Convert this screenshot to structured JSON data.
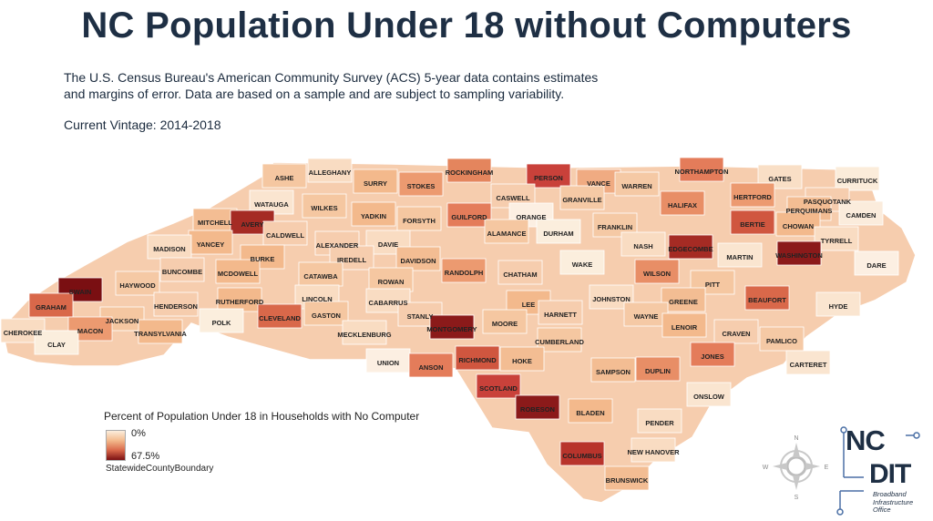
{
  "title": "NC Population Under 18 without Computers",
  "description": {
    "line1": "The U.S. Census Bureau's American Community Survey (ACS) 5-year data contains estimates",
    "line2": "and margins of error.  Data are based on a sample and are subject to sampling variability."
  },
  "vintage": "Current Vintage: 2014-2018",
  "legend": {
    "title": "Percent of Population Under 18 in Households with No Computer",
    "min_label": "0%",
    "max_label": "67.5%",
    "boundary_label": "StatewideCountyBoundary",
    "colors": [
      "#fbeedd",
      "#f3b98c",
      "#d9684a",
      "#7a0f12"
    ]
  },
  "compass": {
    "n": "N",
    "e": "E",
    "s": "S",
    "w": "W"
  },
  "logo": {
    "nc": "NC",
    "dit": "DIT",
    "line1": "Broadband",
    "line2": "Infrastructure",
    "line3": "Office",
    "color": "#1e2f44"
  },
  "map": {
    "counties": [
      {
        "name": "ASHE",
        "color": "#f5c7a1"
      },
      {
        "name": "ALLEGHANY",
        "color": "#f9dcc2"
      },
      {
        "name": "SURRY",
        "color": "#f3b98c"
      },
      {
        "name": "STOKES",
        "color": "#ec9a70"
      },
      {
        "name": "ROCKINGHAM",
        "color": "#e4855d"
      },
      {
        "name": "PERSON",
        "color": "#c9413a"
      },
      {
        "name": "VANCE",
        "color": "#f0ab82"
      },
      {
        "name": "WARREN",
        "color": "#f5c9a5"
      },
      {
        "name": "NORTHAMPTON",
        "color": "#e47c5a"
      },
      {
        "name": "GATES",
        "color": "#f9dfc6"
      },
      {
        "name": "CURRITUCK",
        "color": "#fbecda"
      },
      {
        "name": "HERTFORD",
        "color": "#ec9a70"
      },
      {
        "name": "PASQUOTANK",
        "color": "#f6cdae"
      },
      {
        "name": "PERQUIMANS",
        "color": "#f3bd93"
      },
      {
        "name": "CAMDEN",
        "color": "#fbecdc"
      },
      {
        "name": "CHOWAN",
        "color": "#f3b98c"
      },
      {
        "name": "WATAUGA",
        "color": "#fae5d0"
      },
      {
        "name": "WILKES",
        "color": "#f5c7a1"
      },
      {
        "name": "YADKIN",
        "color": "#f3b98c"
      },
      {
        "name": "FORSYTH",
        "color": "#f5c7a1"
      },
      {
        "name": "CASWELL",
        "color": "#f6cdae"
      },
      {
        "name": "GRANVILLE",
        "color": "#f5c9a5"
      },
      {
        "name": "HALIFAX",
        "color": "#e88e66"
      },
      {
        "name": "BERTIE",
        "color": "#d0563f"
      },
      {
        "name": "MITCHELL",
        "color": "#f3bd93"
      },
      {
        "name": "AVERY",
        "color": "#a52b24"
      },
      {
        "name": "CALDWELL",
        "color": "#f6cdae"
      },
      {
        "name": "GUILFORD",
        "color": "#e47c5a"
      },
      {
        "name": "ORANGE",
        "color": "#fcefe2"
      },
      {
        "name": "FRANKLIN",
        "color": "#f5c9a5"
      },
      {
        "name": "TYRRELL",
        "color": "#f9dcc2"
      },
      {
        "name": "WASHINGTON",
        "color": "#8b1a1a"
      },
      {
        "name": "YANCEY",
        "color": "#f3b98c"
      },
      {
        "name": "MADISON",
        "color": "#f9dcc2"
      },
      {
        "name": "ALEXANDER",
        "color": "#f6cdae"
      },
      {
        "name": "DAVIE",
        "color": "#f9dcc2"
      },
      {
        "name": "ALAMANCE",
        "color": "#f5c7a1"
      },
      {
        "name": "DURHAM",
        "color": "#fbeedd"
      },
      {
        "name": "NASH",
        "color": "#f9dcc2"
      },
      {
        "name": "EDGECOMBE",
        "color": "#a52b24"
      },
      {
        "name": "MARTIN",
        "color": "#fae5d0"
      },
      {
        "name": "DARE",
        "color": "#fcefe2"
      },
      {
        "name": "BUNCOMBE",
        "color": "#f6cdae"
      },
      {
        "name": "BURKE",
        "color": "#f3b98c"
      },
      {
        "name": "IREDELL",
        "color": "#f6cdae"
      },
      {
        "name": "DAVIDSON",
        "color": "#f3bd93"
      },
      {
        "name": "RANDOLPH",
        "color": "#ec9a70"
      },
      {
        "name": "CHATHAM",
        "color": "#f6cdae"
      },
      {
        "name": "WAKE",
        "color": "#fbeedd"
      },
      {
        "name": "WILSON",
        "color": "#e88e66"
      },
      {
        "name": "PITT",
        "color": "#f5c7a1"
      },
      {
        "name": "HAYWOOD",
        "color": "#f5c9a5"
      },
      {
        "name": "SWAIN",
        "color": "#7a0f12"
      },
      {
        "name": "MCDOWELL",
        "color": "#f3b98c"
      },
      {
        "name": "CATAWBA",
        "color": "#f5c7a1"
      },
      {
        "name": "ROWAN",
        "color": "#f5c7a1"
      },
      {
        "name": "JOHNSTON",
        "color": "#f9dcc2"
      },
      {
        "name": "GREENE",
        "color": "#f3bd93"
      },
      {
        "name": "BEAUFORT",
        "color": "#d9684a"
      },
      {
        "name": "HYDE",
        "color": "#fae5d0"
      },
      {
        "name": "GRAHAM",
        "color": "#d9684a"
      },
      {
        "name": "HENDERSON",
        "color": "#f6cdae"
      },
      {
        "name": "RUTHERFORD",
        "color": "#f3b98c"
      },
      {
        "name": "LINCOLN",
        "color": "#f9dcc2"
      },
      {
        "name": "CABARRUS",
        "color": "#f9dcc2"
      },
      {
        "name": "STANLY",
        "color": "#f6cdae"
      },
      {
        "name": "LEE",
        "color": "#f3b98c"
      },
      {
        "name": "HARNETT",
        "color": "#f6cdae"
      },
      {
        "name": "WAYNE",
        "color": "#f5c9a5"
      },
      {
        "name": "LENOIR",
        "color": "#f3b98c"
      },
      {
        "name": "CRAVEN",
        "color": "#f6cdae"
      },
      {
        "name": "PAMLICO",
        "color": "#f5c9a5"
      },
      {
        "name": "JACKSON",
        "color": "#f5c7a1"
      },
      {
        "name": "POLK",
        "color": "#fbeedd"
      },
      {
        "name": "CLEVELAND",
        "color": "#d9684a"
      },
      {
        "name": "GASTON",
        "color": "#f5c7a1"
      },
      {
        "name": "MECKLENBURG",
        "color": "#f9dcc2"
      },
      {
        "name": "MONTGOMERY",
        "color": "#8b1a1a"
      },
      {
        "name": "MOORE",
        "color": "#f5c7a1"
      },
      {
        "name": "CUMBERLAND",
        "color": "#f5c7a1"
      },
      {
        "name": "JONES",
        "color": "#e47c5a"
      },
      {
        "name": "CARTERET",
        "color": "#fae5d0"
      },
      {
        "name": "CHEROKEE",
        "color": "#f9dcc2"
      },
      {
        "name": "MACON",
        "color": "#ec9a70"
      },
      {
        "name": "TRANSYLVANIA",
        "color": "#f3b98c"
      },
      {
        "name": "CLAY",
        "color": "#fbeedd"
      },
      {
        "name": "UNION",
        "color": "#fcefe2"
      },
      {
        "name": "ANSON",
        "color": "#e47c5a"
      },
      {
        "name": "RICHMOND",
        "color": "#d0563f"
      },
      {
        "name": "HOKE",
        "color": "#f3bd93"
      },
      {
        "name": "SAMPSON",
        "color": "#f3bd93"
      },
      {
        "name": "DUPLIN",
        "color": "#e88e66"
      },
      {
        "name": "ONSLOW",
        "color": "#fae5d0"
      },
      {
        "name": "SCOTLAND",
        "color": "#c9413a"
      },
      {
        "name": "ROBESON",
        "color": "#8b1a1a"
      },
      {
        "name": "BLADEN",
        "color": "#f3b98c"
      },
      {
        "name": "PENDER",
        "color": "#f9dcc2"
      },
      {
        "name": "COLUMBUS",
        "color": "#b8342c"
      },
      {
        "name": "NEW HANOVER",
        "color": "#f9dcc2"
      },
      {
        "name": "BRUNSWICK",
        "color": "#f3bd93"
      }
    ]
  }
}
